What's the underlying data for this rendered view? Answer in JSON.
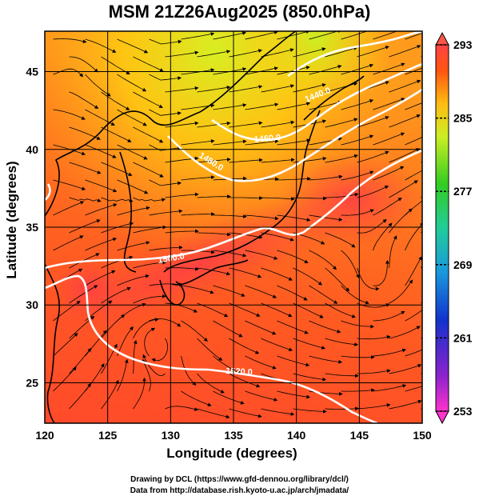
{
  "title": "MSM 21Z26Aug2025 (850.0hPa)",
  "map": {
    "xlabel": "Longitude (degrees)",
    "ylabel": "Latitude  (degrees)",
    "lon_ticks": [
      "120",
      "125",
      "130",
      "135",
      "140",
      "145",
      "150"
    ],
    "lat_ticks": [
      "25",
      "30",
      "35",
      "40",
      "45"
    ],
    "lon_range": [
      120,
      150
    ],
    "lat_range": [
      22.4,
      47.6
    ],
    "contour_labels": [
      "1440.0",
      "1460.0",
      "1480.0",
      "1500.0",
      "1520.0"
    ],
    "fields": [
      "temperature (shaded)",
      "geopotential height (white contours)",
      "wind (streamlines)",
      "coastlines"
    ]
  },
  "colorbar": {
    "ticks": [
      "293",
      "285",
      "277",
      "269",
      "261",
      "253"
    ],
    "range": [
      253,
      293
    ],
    "colors": [
      "#ff33cc",
      "#3322cc",
      "#1a88dd",
      "#22cc99",
      "#44cc22",
      "#ccee22",
      "#ffcc11",
      "#ff7711",
      "#ff3322",
      "#ff5544"
    ]
  },
  "credits": {
    "line1": "Drawing by DCL (https://www.gfd-dennou.org/library/dcl/)",
    "line2": "Data from http://database.rish.kyoto-u.ac.jp/arch/jmadata/"
  }
}
